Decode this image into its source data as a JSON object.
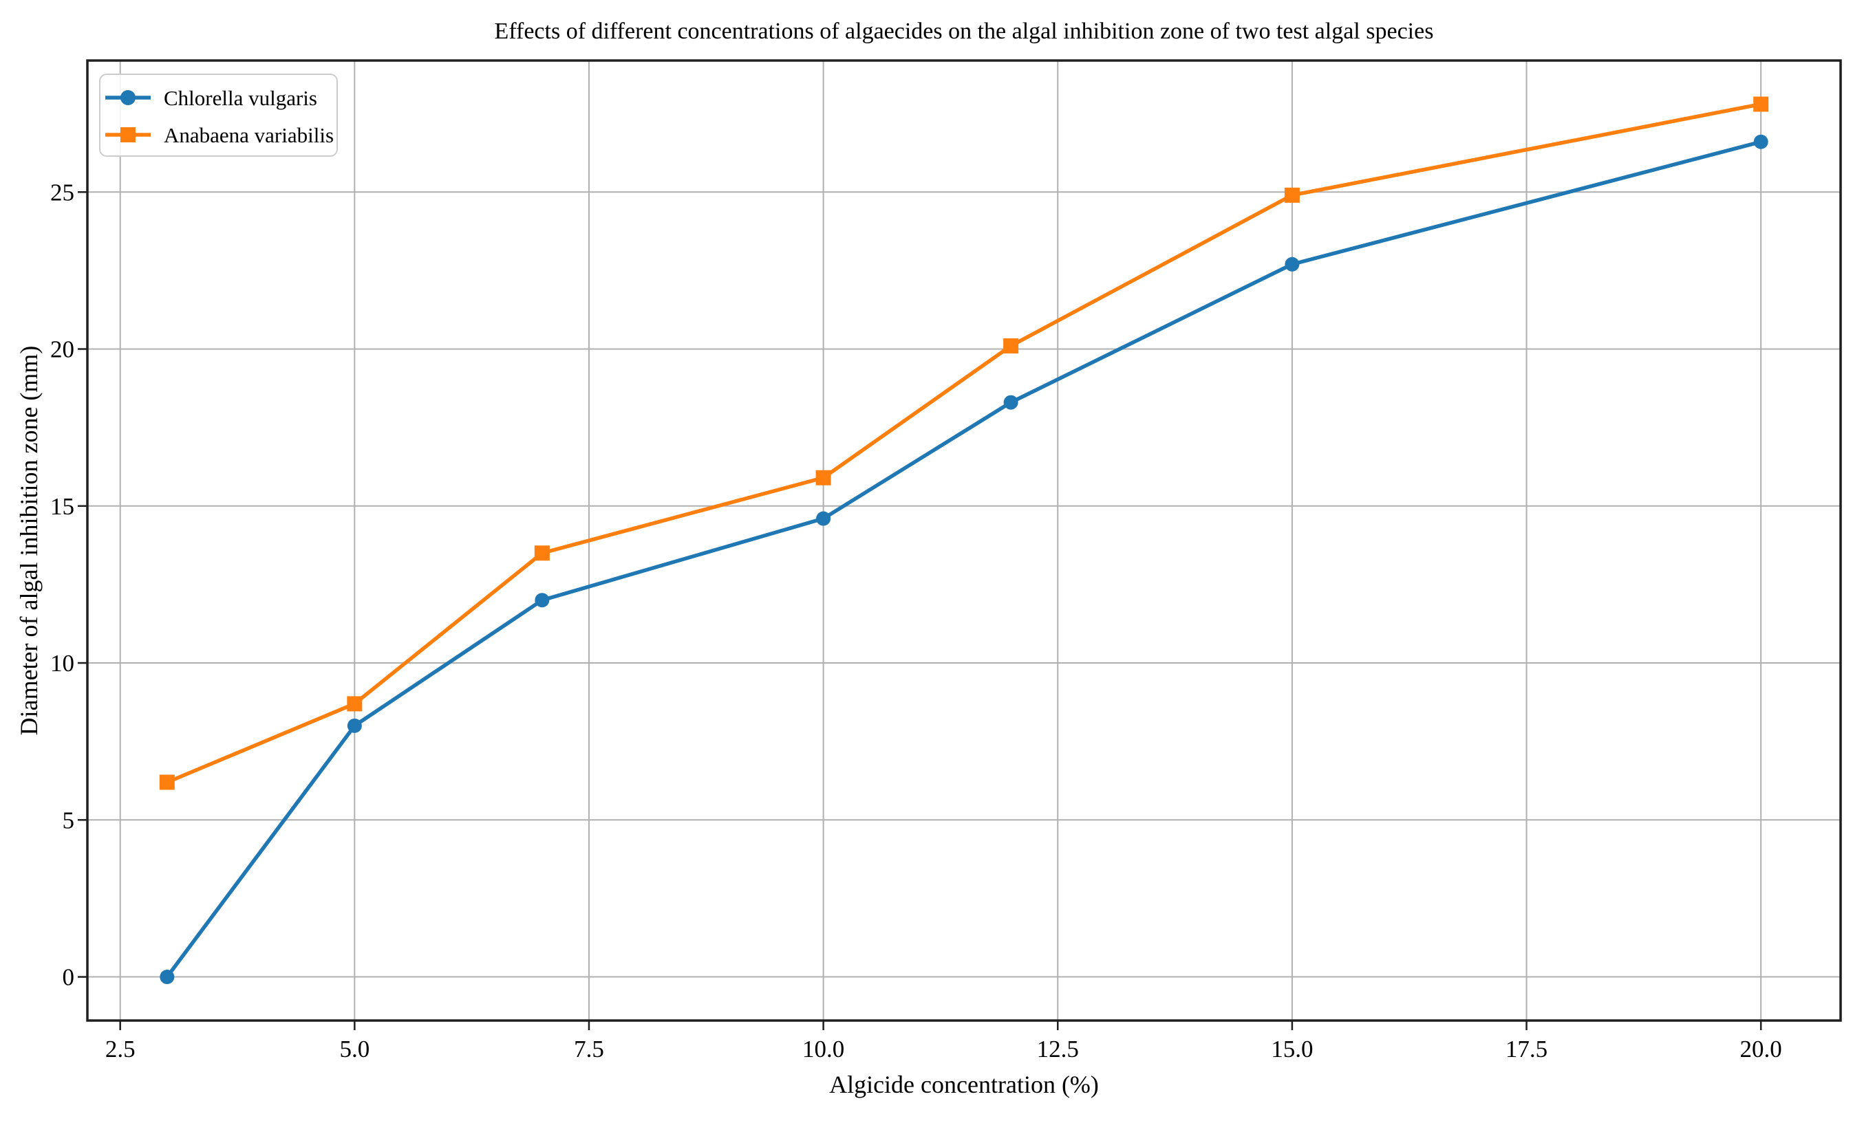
{
  "chart_data": {
    "type": "line",
    "title": "Effects of different concentrations of algaecides on the algal inhibition zone of two test algal species",
    "xlabel": "Algicide concentration (%)",
    "ylabel": "Diameter of algal inhibition zone (mm)",
    "x": [
      3,
      5,
      7,
      10,
      12,
      15,
      20
    ],
    "series": [
      {
        "name": "Chlorella vulgaris",
        "color": "#1f77b4",
        "marker": "circle",
        "values": [
          0,
          8.0,
          12.0,
          14.6,
          18.3,
          22.7,
          26.6
        ]
      },
      {
        "name": "Anabaena variabilis",
        "color": "#ff7f0e",
        "marker": "square",
        "values": [
          6.2,
          8.7,
          13.5,
          15.9,
          20.1,
          24.9,
          27.8
        ]
      }
    ],
    "xticks": [
      2.5,
      5.0,
      7.5,
      10.0,
      12.5,
      15.0,
      17.5,
      20.0
    ],
    "xtick_labels": [
      "2.5",
      "5.0",
      "7.5",
      "10.0",
      "12.5",
      "15.0",
      "17.5",
      "20.0"
    ],
    "yticks": [
      0,
      5,
      10,
      15,
      20,
      25
    ],
    "ytick_labels": [
      "0",
      "5",
      "10",
      "15",
      "20",
      "25"
    ],
    "xlim": [
      2.15,
      20.85
    ],
    "ylim": [
      -1.39,
      29.19
    ],
    "grid": true,
    "legend_position": "upper-left",
    "colors": {
      "background": "#ffffff",
      "grid": "#b0b0b0",
      "spine": "#1f1f1f",
      "text": "#000000",
      "legend_border": "#cccccc",
      "legend_fill": "#ffffff"
    }
  }
}
